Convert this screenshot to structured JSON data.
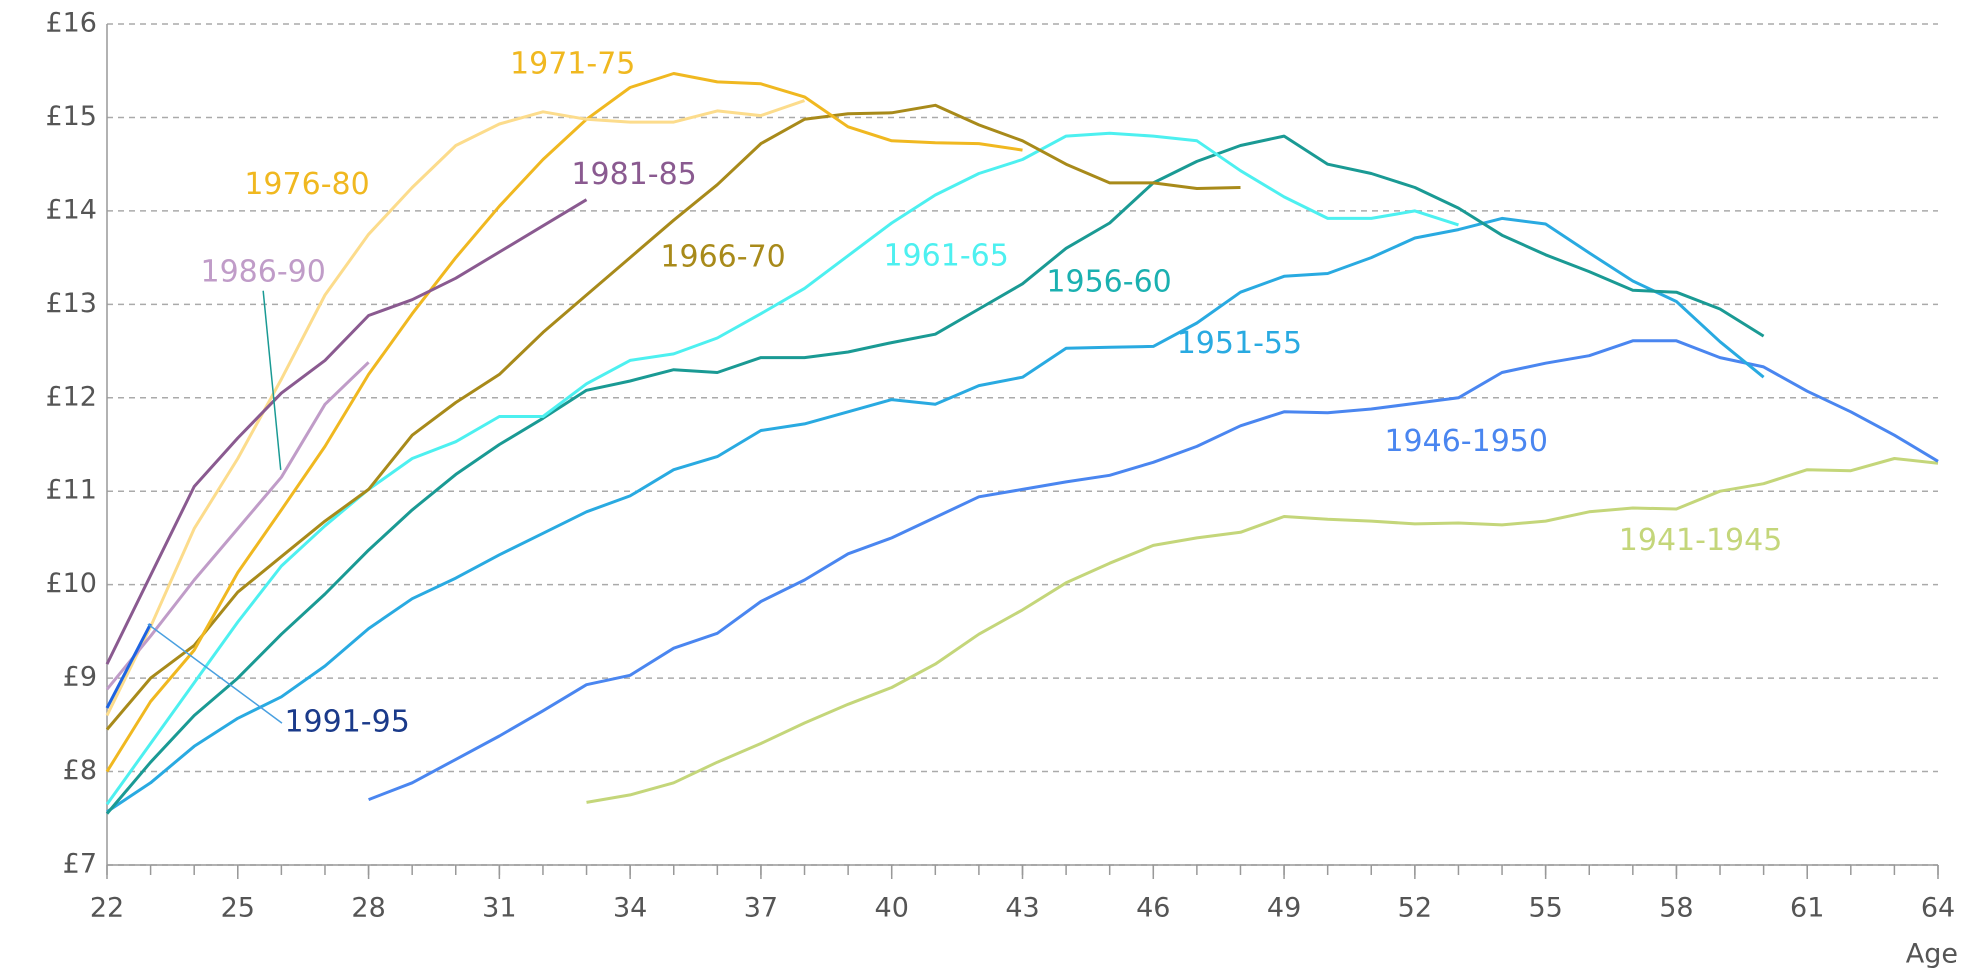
{
  "chart_data": {
    "type": "line",
    "x_label": "Age",
    "xlim": [
      22,
      64
    ],
    "xticks": [
      22,
      25,
      28,
      31,
      34,
      37,
      40,
      43,
      46,
      49,
      52,
      55,
      58,
      61,
      64
    ],
    "ylim": [
      7,
      16
    ],
    "yticks": [
      {
        "value": 7,
        "label": "£7"
      },
      {
        "value": 8,
        "label": "£8"
      },
      {
        "value": 9,
        "label": "£9"
      },
      {
        "value": 10,
        "label": "£10"
      },
      {
        "value": 11,
        "label": "£11"
      },
      {
        "value": 12,
        "label": "£12"
      },
      {
        "value": 13,
        "label": "£13"
      },
      {
        "value": 14,
        "label": "£14"
      },
      {
        "value": 15,
        "label": "£15"
      },
      {
        "value": 16,
        "label": "£16"
      }
    ],
    "grid": true,
    "series": [
      {
        "name": "1941-1945",
        "color": "#c4d67a",
        "x": [
          33,
          34,
          35,
          36,
          37,
          38,
          39,
          40,
          41,
          42,
          43,
          44,
          45,
          46,
          47,
          48,
          49,
          50,
          51,
          52,
          53,
          54,
          55,
          56,
          57,
          58,
          59,
          60,
          61,
          62,
          63,
          64
        ],
        "values": [
          7.67,
          7.75,
          7.88,
          8.1,
          8.3,
          8.52,
          8.72,
          8.9,
          9.15,
          9.47,
          9.73,
          10.02,
          10.23,
          10.42,
          10.5,
          10.56,
          10.73,
          10.7,
          10.68,
          10.65,
          10.66,
          10.64,
          10.68,
          10.78,
          10.82,
          10.81,
          11.0,
          11.08,
          11.23,
          11.22,
          11.35,
          11.3
        ]
      },
      {
        "name": "1946-1950",
        "color": "#4a86f0",
        "x": [
          28,
          29,
          30,
          31,
          32,
          33,
          34,
          35,
          36,
          37,
          38,
          39,
          40,
          41,
          42,
          43,
          44,
          45,
          46,
          47,
          48,
          49,
          50,
          51,
          52,
          53,
          54,
          55,
          56,
          57,
          58,
          59,
          60,
          61,
          62,
          63,
          64
        ],
        "values": [
          7.7,
          7.88,
          8.13,
          8.38,
          8.65,
          8.93,
          9.03,
          9.32,
          9.48,
          9.82,
          10.05,
          10.33,
          10.5,
          10.72,
          10.94,
          11.02,
          11.1,
          11.17,
          11.31,
          11.48,
          11.7,
          11.85,
          11.84,
          11.88,
          11.94,
          12.0,
          12.27,
          12.37,
          12.45,
          12.61,
          12.61,
          12.43,
          12.33,
          12.07,
          11.85,
          11.6,
          11.32
        ]
      },
      {
        "name": "1951-55",
        "color": "#29aae1",
        "x": [
          22,
          23,
          24,
          25,
          26,
          27,
          28,
          29,
          30,
          31,
          32,
          33,
          34,
          35,
          36,
          37,
          38,
          39,
          40,
          41,
          42,
          43,
          44,
          45,
          46,
          47,
          48,
          49,
          50,
          51,
          52,
          53,
          54,
          55,
          56,
          57,
          58,
          59,
          60
        ],
        "values": [
          7.57,
          7.88,
          8.27,
          8.57,
          8.8,
          9.13,
          9.53,
          9.85,
          10.07,
          10.32,
          10.55,
          10.78,
          10.95,
          11.23,
          11.37,
          11.65,
          11.72,
          11.85,
          11.98,
          11.93,
          12.13,
          12.22,
          12.53,
          12.54,
          12.55,
          12.8,
          13.13,
          13.3,
          13.33,
          13.5,
          13.71,
          13.8,
          13.92,
          13.86,
          13.55,
          13.25,
          13.03,
          12.6,
          12.22
        ]
      },
      {
        "name": "1956-60",
        "color": "#1a9a94",
        "x": [
          22,
          23,
          24,
          25,
          26,
          27,
          28,
          29,
          30,
          31,
          32,
          33,
          34,
          35,
          36,
          37,
          38,
          39,
          40,
          41,
          42,
          43,
          44,
          45,
          46,
          47,
          48,
          49,
          50,
          51,
          52,
          53,
          54,
          55,
          56,
          57,
          58,
          59,
          60
        ],
        "values": [
          7.55,
          8.1,
          8.6,
          9.0,
          9.47,
          9.9,
          10.37,
          10.8,
          11.18,
          11.5,
          11.78,
          12.08,
          12.18,
          12.3,
          12.27,
          12.43,
          12.43,
          12.49,
          12.59,
          12.68,
          12.95,
          13.22,
          13.6,
          13.87,
          14.3,
          14.53,
          14.7,
          14.8,
          14.5,
          14.4,
          14.25,
          14.03,
          13.74,
          13.53,
          13.35,
          13.15,
          13.13,
          12.95,
          12.66
        ]
      },
      {
        "name": "1961-65",
        "color": "#4df0f0",
        "x": [
          22,
          23,
          24,
          25,
          26,
          27,
          28,
          29,
          30,
          31,
          32,
          33,
          34,
          35,
          36,
          37,
          38,
          39,
          40,
          41,
          42,
          43,
          44,
          45,
          46,
          47,
          48,
          49,
          50,
          51,
          52,
          53
        ],
        "values": [
          7.65,
          8.3,
          8.95,
          9.6,
          10.2,
          10.63,
          11.02,
          11.35,
          11.53,
          11.8,
          11.8,
          12.15,
          12.4,
          12.47,
          12.64,
          12.9,
          13.17,
          13.52,
          13.87,
          14.17,
          14.4,
          14.55,
          14.8,
          14.83,
          14.8,
          14.75,
          14.43,
          14.15,
          13.92,
          13.92,
          14.0,
          13.85
        ]
      },
      {
        "name": "1966-70",
        "color": "#a88a1a",
        "x": [
          22,
          23,
          24,
          25,
          26,
          27,
          28,
          29,
          30,
          31,
          32,
          33,
          34,
          35,
          36,
          37,
          38,
          39,
          40,
          41,
          42,
          43,
          44,
          45,
          46,
          47,
          48
        ],
        "values": [
          8.45,
          9.0,
          9.35,
          9.92,
          10.3,
          10.68,
          11.02,
          11.6,
          11.95,
          12.25,
          12.7,
          13.1,
          13.5,
          13.9,
          14.28,
          14.72,
          14.98,
          15.04,
          15.05,
          15.13,
          14.92,
          14.75,
          14.5,
          14.3,
          14.3,
          14.24,
          14.25
        ]
      },
      {
        "name": "1971-75",
        "color": "#f0b820",
        "x": [
          22,
          23,
          24,
          25,
          26,
          27,
          28,
          29,
          30,
          31,
          32,
          33,
          34,
          35,
          36,
          37,
          38,
          39,
          40,
          41,
          42,
          43
        ],
        "values": [
          8.0,
          8.75,
          9.3,
          10.13,
          10.8,
          11.48,
          12.25,
          12.9,
          13.5,
          14.05,
          14.55,
          14.98,
          15.32,
          15.47,
          15.38,
          15.36,
          15.22,
          14.9,
          14.75,
          14.73,
          14.72,
          14.65
        ]
      },
      {
        "name": "1976-80",
        "color": "#fcdc8c",
        "x": [
          22,
          23,
          24,
          25,
          26,
          27,
          28,
          29,
          30,
          31,
          32,
          33,
          34,
          35,
          36,
          37,
          38
        ],
        "values": [
          8.6,
          9.55,
          10.6,
          11.35,
          12.2,
          13.1,
          13.75,
          14.25,
          14.7,
          14.93,
          15.06,
          14.98,
          14.95,
          14.95,
          15.07,
          15.02,
          15.18
        ]
      },
      {
        "name": "1981-85",
        "color": "#8a5a90",
        "x": [
          22,
          23,
          24,
          25,
          26,
          27,
          28,
          29,
          30,
          31,
          32,
          33
        ],
        "values": [
          9.15,
          10.1,
          11.05,
          11.57,
          12.05,
          12.4,
          12.88,
          13.05,
          13.28,
          13.56,
          13.84,
          14.12
        ]
      },
      {
        "name": "1986-90",
        "color": "#c09cc8",
        "x": [
          22,
          23,
          24,
          25,
          26,
          27,
          28
        ],
        "values": [
          8.88,
          9.45,
          10.05,
          10.6,
          11.15,
          11.93,
          12.38
        ]
      },
      {
        "name": "1991-95",
        "color": "#1e64e0",
        "x": [
          22,
          23
        ],
        "values": [
          8.68,
          9.58
        ]
      }
    ]
  }
}
